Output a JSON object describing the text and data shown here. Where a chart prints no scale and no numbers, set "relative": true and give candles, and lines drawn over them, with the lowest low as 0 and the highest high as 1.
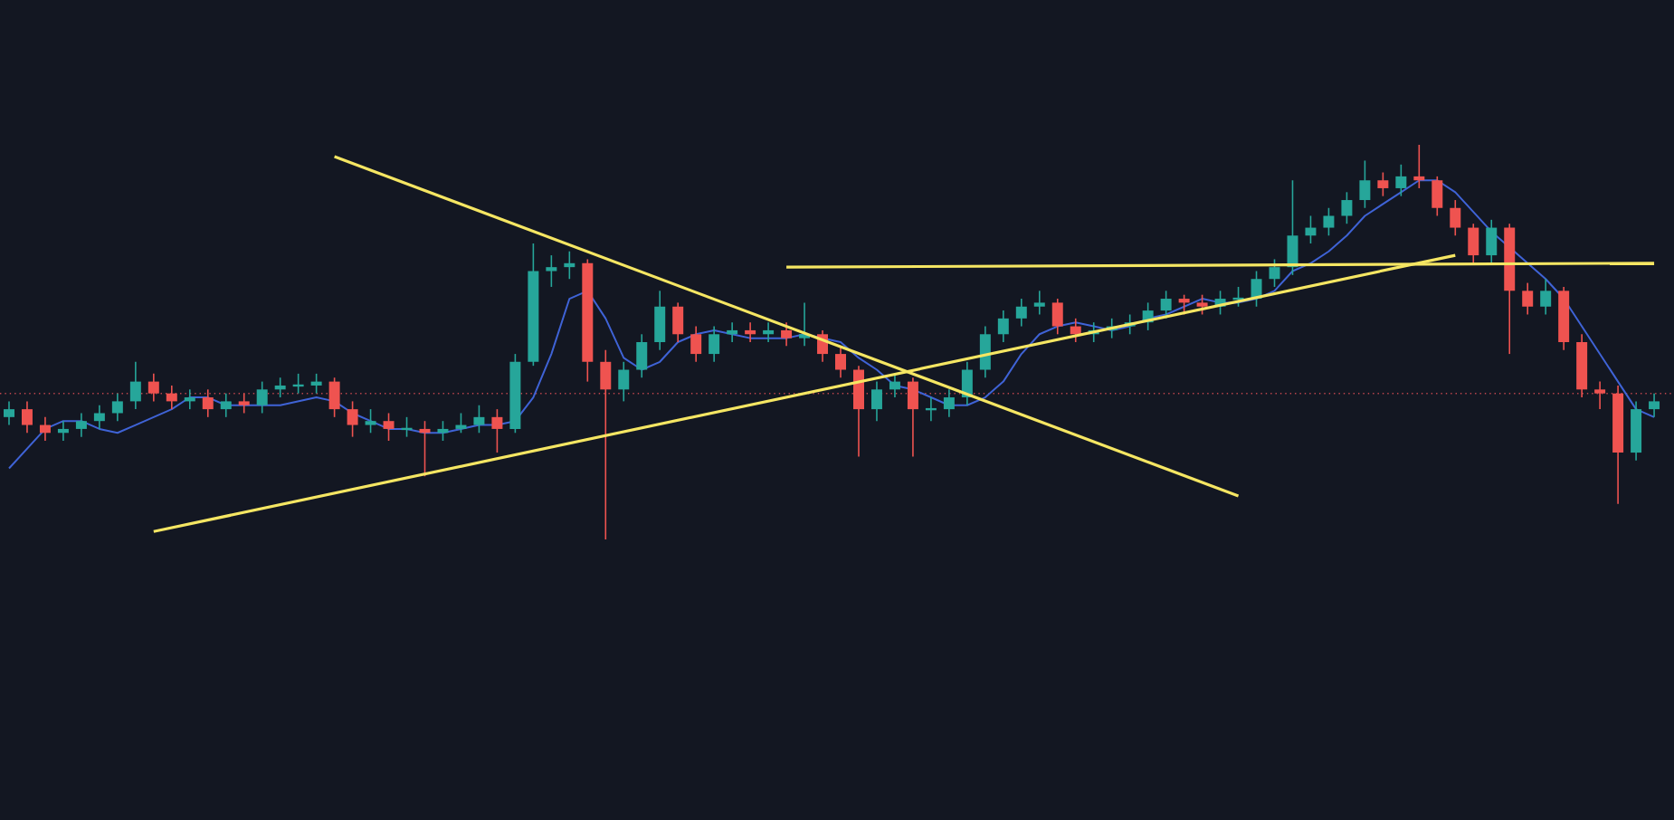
{
  "chart_data": {
    "type": "candlestick",
    "relative": true,
    "categories": [
      null,
      null,
      null,
      null,
      null,
      null,
      null,
      null,
      null,
      null,
      null,
      null,
      null,
      null,
      null,
      null,
      null,
      null,
      null,
      null,
      null,
      null,
      null,
      null,
      null,
      null,
      null,
      null,
      null,
      null,
      null,
      null,
      null,
      null,
      null,
      null,
      null,
      null,
      null,
      null,
      null,
      null,
      null,
      null,
      null,
      null,
      null,
      null,
      null,
      null,
      null,
      null,
      null,
      null,
      null,
      null,
      null,
      null,
      null,
      null,
      null,
      null,
      null,
      null,
      null,
      null,
      null,
      null,
      null,
      null,
      null,
      null,
      null,
      null,
      null,
      null,
      null,
      null,
      null,
      null,
      null,
      null,
      null,
      null,
      null,
      null,
      null,
      null,
      null,
      null,
      null,
      null
    ],
    "ohlc": [
      [
        0.31,
        0.35,
        0.29,
        0.33
      ],
      [
        0.33,
        0.35,
        0.27,
        0.29
      ],
      [
        0.29,
        0.31,
        0.25,
        0.27
      ],
      [
        0.27,
        0.3,
        0.25,
        0.28
      ],
      [
        0.28,
        0.32,
        0.26,
        0.3
      ],
      [
        0.3,
        0.34,
        0.28,
        0.32
      ],
      [
        0.32,
        0.37,
        0.3,
        0.35
      ],
      [
        0.35,
        0.45,
        0.33,
        0.4
      ],
      [
        0.4,
        0.42,
        0.35,
        0.37
      ],
      [
        0.37,
        0.39,
        0.33,
        0.35
      ],
      [
        0.35,
        0.38,
        0.33,
        0.36
      ],
      [
        0.36,
        0.38,
        0.31,
        0.33
      ],
      [
        0.33,
        0.37,
        0.31,
        0.35
      ],
      [
        0.35,
        0.37,
        0.32,
        0.34
      ],
      [
        0.34,
        0.4,
        0.32,
        0.38
      ],
      [
        0.38,
        0.41,
        0.36,
        0.39
      ],
      [
        0.39,
        0.42,
        0.37,
        0.39
      ],
      [
        0.39,
        0.42,
        0.37,
        0.4
      ],
      [
        0.4,
        0.41,
        0.31,
        0.33
      ],
      [
        0.33,
        0.35,
        0.26,
        0.29
      ],
      [
        0.29,
        0.33,
        0.27,
        0.3
      ],
      [
        0.3,
        0.32,
        0.25,
        0.28
      ],
      [
        0.28,
        0.31,
        0.26,
        0.28
      ],
      [
        0.28,
        0.3,
        0.16,
        0.27
      ],
      [
        0.27,
        0.3,
        0.25,
        0.28
      ],
      [
        0.28,
        0.32,
        0.27,
        0.29
      ],
      [
        0.29,
        0.34,
        0.27,
        0.31
      ],
      [
        0.31,
        0.33,
        0.22,
        0.28
      ],
      [
        0.28,
        0.47,
        0.27,
        0.45
      ],
      [
        0.45,
        0.75,
        0.44,
        0.68
      ],
      [
        0.68,
        0.72,
        0.64,
        0.69
      ],
      [
        0.69,
        0.73,
        0.66,
        0.7
      ],
      [
        0.7,
        0.71,
        0.4,
        0.45
      ],
      [
        0.45,
        0.48,
        0.0,
        0.38
      ],
      [
        0.38,
        0.45,
        0.35,
        0.43
      ],
      [
        0.43,
        0.52,
        0.41,
        0.5
      ],
      [
        0.5,
        0.63,
        0.48,
        0.59
      ],
      [
        0.59,
        0.6,
        0.5,
        0.52
      ],
      [
        0.52,
        0.54,
        0.45,
        0.47
      ],
      [
        0.47,
        0.54,
        0.45,
        0.52
      ],
      [
        0.52,
        0.55,
        0.5,
        0.53
      ],
      [
        0.53,
        0.55,
        0.5,
        0.52
      ],
      [
        0.52,
        0.55,
        0.5,
        0.53
      ],
      [
        0.53,
        0.55,
        0.49,
        0.51
      ],
      [
        0.51,
        0.6,
        0.49,
        0.52
      ],
      [
        0.52,
        0.53,
        0.45,
        0.47
      ],
      [
        0.47,
        0.49,
        0.41,
        0.43
      ],
      [
        0.43,
        0.44,
        0.21,
        0.33
      ],
      [
        0.33,
        0.4,
        0.3,
        0.38
      ],
      [
        0.38,
        0.42,
        0.36,
        0.4
      ],
      [
        0.4,
        0.41,
        0.21,
        0.33
      ],
      [
        0.33,
        0.36,
        0.3,
        0.33
      ],
      [
        0.33,
        0.38,
        0.31,
        0.36
      ],
      [
        0.36,
        0.45,
        0.34,
        0.43
      ],
      [
        0.43,
        0.54,
        0.41,
        0.52
      ],
      [
        0.52,
        0.58,
        0.5,
        0.56
      ],
      [
        0.56,
        0.61,
        0.54,
        0.59
      ],
      [
        0.59,
        0.63,
        0.57,
        0.6
      ],
      [
        0.6,
        0.61,
        0.52,
        0.54
      ],
      [
        0.54,
        0.56,
        0.5,
        0.52
      ],
      [
        0.52,
        0.55,
        0.5,
        0.53
      ],
      [
        0.53,
        0.56,
        0.51,
        0.54
      ],
      [
        0.54,
        0.57,
        0.52,
        0.55
      ],
      [
        0.55,
        0.6,
        0.53,
        0.58
      ],
      [
        0.58,
        0.63,
        0.56,
        0.61
      ],
      [
        0.61,
        0.62,
        0.57,
        0.6
      ],
      [
        0.6,
        0.62,
        0.57,
        0.59
      ],
      [
        0.59,
        0.63,
        0.57,
        0.61
      ],
      [
        0.61,
        0.64,
        0.59,
        0.61
      ],
      [
        0.61,
        0.68,
        0.59,
        0.66
      ],
      [
        0.66,
        0.71,
        0.64,
        0.69
      ],
      [
        0.69,
        0.91,
        0.67,
        0.77
      ],
      [
        0.77,
        0.82,
        0.75,
        0.79
      ],
      [
        0.79,
        0.84,
        0.77,
        0.82
      ],
      [
        0.82,
        0.88,
        0.8,
        0.86
      ],
      [
        0.86,
        0.96,
        0.84,
        0.91
      ],
      [
        0.91,
        0.93,
        0.87,
        0.89
      ],
      [
        0.89,
        0.95,
        0.87,
        0.92
      ],
      [
        0.92,
        1.0,
        0.89,
        0.91
      ],
      [
        0.91,
        0.92,
        0.82,
        0.84
      ],
      [
        0.84,
        0.86,
        0.77,
        0.79
      ],
      [
        0.79,
        0.8,
        0.7,
        0.72
      ],
      [
        0.72,
        0.81,
        0.7,
        0.79
      ],
      [
        0.79,
        0.8,
        0.47,
        0.63
      ],
      [
        0.63,
        0.65,
        0.57,
        0.59
      ],
      [
        0.59,
        0.66,
        0.57,
        0.63
      ],
      [
        0.63,
        0.64,
        0.48,
        0.5
      ],
      [
        0.5,
        0.52,
        0.36,
        0.38
      ],
      [
        0.38,
        0.4,
        0.33,
        0.37
      ],
      [
        0.37,
        0.39,
        0.09,
        0.22
      ],
      [
        0.22,
        0.35,
        0.2,
        0.33
      ],
      [
        0.33,
        0.37,
        0.31,
        0.35
      ]
    ],
    "colors": [
      "#26a69a",
      "#ef5350",
      "#ef5350",
      "#26a69a",
      "#26a69a",
      "#26a69a",
      "#26a69a",
      "#26a69a",
      "#ef5350",
      "#ef5350",
      "#26a69a",
      "#ef5350",
      "#26a69a",
      "#ef5350",
      "#26a69a",
      "#26a69a",
      "#26a69a",
      "#26a69a",
      "#ef5350",
      "#ef5350",
      "#26a69a",
      "#ef5350",
      "#26a69a",
      "#ef5350",
      "#26a69a",
      "#26a69a",
      "#26a69a",
      "#ef5350",
      "#26a69a",
      "#26a69a",
      "#26a69a",
      "#26a69a",
      "#ef5350",
      "#ef5350",
      "#26a69a",
      "#26a69a",
      "#26a69a",
      "#ef5350",
      "#ef5350",
      "#26a69a",
      "#26a69a",
      "#ef5350",
      "#26a69a",
      "#ef5350",
      "#26a69a",
      "#ef5350",
      "#ef5350",
      "#ef5350",
      "#26a69a",
      "#26a69a",
      "#ef5350",
      "#26a69a",
      "#26a69a",
      "#26a69a",
      "#26a69a",
      "#26a69a",
      "#26a69a",
      "#26a69a",
      "#ef5350",
      "#ef5350",
      "#26a69a",
      "#26a69a",
      "#26a69a",
      "#26a69a",
      "#26a69a",
      "#ef5350",
      "#ef5350",
      "#26a69a",
      "#26a69a",
      "#26a69a",
      "#26a69a",
      "#26a69a",
      "#26a69a",
      "#26a69a",
      "#26a69a",
      "#26a69a",
      "#ef5350",
      "#26a69a",
      "#ef5350",
      "#ef5350",
      "#ef5350",
      "#ef5350",
      "#26a69a",
      "#ef5350",
      "#ef5350",
      "#26a69a",
      "#ef5350",
      "#ef5350",
      "#ef5350",
      "#ef5350",
      "#26a69a",
      "#26a69a"
    ],
    "series": [
      {
        "type": "line",
        "color": "#3f63d6",
        "values": [
          0.18,
          0.23,
          0.28,
          0.3,
          0.3,
          0.28,
          0.27,
          0.29,
          0.31,
          0.33,
          0.36,
          0.36,
          0.34,
          0.34,
          0.34,
          0.34,
          0.35,
          0.36,
          0.35,
          0.32,
          0.3,
          0.28,
          0.28,
          0.27,
          0.27,
          0.28,
          0.29,
          0.29,
          0.3,
          0.36,
          0.47,
          0.61,
          0.63,
          0.56,
          0.46,
          0.43,
          0.45,
          0.5,
          0.52,
          0.53,
          0.52,
          0.51,
          0.51,
          0.51,
          0.52,
          0.51,
          0.5,
          0.46,
          0.43,
          0.39,
          0.38,
          0.36,
          0.34,
          0.34,
          0.36,
          0.4,
          0.47,
          0.52,
          0.54,
          0.55,
          0.54,
          0.53,
          0.54,
          0.56,
          0.57,
          0.59,
          0.61,
          0.6,
          0.6,
          0.61,
          0.63,
          0.68,
          0.7,
          0.73,
          0.77,
          0.82,
          0.85,
          0.88,
          0.91,
          0.91,
          0.88,
          0.83,
          0.78,
          0.74,
          0.7,
          0.66,
          0.61,
          0.54,
          0.47,
          0.4,
          0.33,
          0.31
        ]
      },
      {
        "type": "line",
        "color": "#f5e663",
        "values": [
          null,
          null,
          null,
          null,
          null,
          null,
          null,
          null,
          null,
          null,
          null,
          null,
          null,
          null,
          null,
          null,
          null,
          null,
          0.97,
          null,
          null,
          null,
          null,
          null,
          null,
          null,
          null,
          null,
          null,
          null,
          null,
          null,
          null,
          null,
          null,
          null,
          null,
          null,
          null,
          null,
          null,
          null,
          null,
          null,
          null,
          null,
          null,
          null,
          null,
          null,
          null,
          null,
          null,
          null,
          null,
          null,
          null,
          null,
          null,
          null,
          null,
          null,
          null,
          null,
          null,
          null,
          null,
          null,
          0.11,
          null,
          null,
          null,
          null,
          null,
          null,
          null,
          null,
          null,
          null,
          null,
          null,
          null,
          null,
          null,
          null,
          null,
          null,
          null,
          null,
          null,
          null,
          null
        ]
      },
      {
        "type": "line",
        "color": "#f5e663",
        "values": [
          null,
          null,
          null,
          null,
          null,
          null,
          null,
          null,
          0.02,
          null,
          null,
          null,
          null,
          null,
          null,
          null,
          null,
          null,
          null,
          null,
          null,
          null,
          null,
          null,
          null,
          null,
          null,
          null,
          null,
          null,
          null,
          null,
          null,
          null,
          null,
          null,
          null,
          null,
          null,
          null,
          null,
          null,
          null,
          null,
          null,
          null,
          null,
          null,
          null,
          null,
          null,
          null,
          null,
          null,
          null,
          null,
          null,
          null,
          null,
          null,
          null,
          null,
          null,
          null,
          null,
          null,
          null,
          null,
          null,
          null,
          null,
          null,
          null,
          null,
          null,
          null,
          null,
          null,
          null,
          null,
          0.72,
          null,
          null,
          null,
          null,
          null,
          null,
          null,
          null,
          null,
          null,
          null
        ]
      },
      {
        "type": "line",
        "color": "#f5e663",
        "values": [
          null,
          null,
          null,
          null,
          null,
          null,
          null,
          null,
          null,
          null,
          null,
          null,
          null,
          null,
          null,
          null,
          null,
          null,
          null,
          null,
          null,
          null,
          null,
          null,
          null,
          null,
          null,
          null,
          null,
          null,
          null,
          null,
          null,
          null,
          null,
          null,
          null,
          null,
          null,
          null,
          null,
          null,
          null,
          0.69,
          null,
          null,
          null,
          null,
          null,
          null,
          null,
          null,
          null,
          null,
          null,
          null,
          null,
          null,
          null,
          null,
          null,
          null,
          null,
          null,
          null,
          null,
          null,
          null,
          null,
          null,
          null,
          null,
          null,
          null,
          null,
          null,
          null,
          null,
          null,
          null,
          null,
          null,
          null,
          null,
          null,
          null,
          null,
          null,
          null,
          null,
          null,
          0.7
        ]
      }
    ],
    "ref_lines": [
      {
        "axis": "y",
        "value": 0.37,
        "color": "#c2474f",
        "line_style": "dotted"
      }
    ]
  }
}
